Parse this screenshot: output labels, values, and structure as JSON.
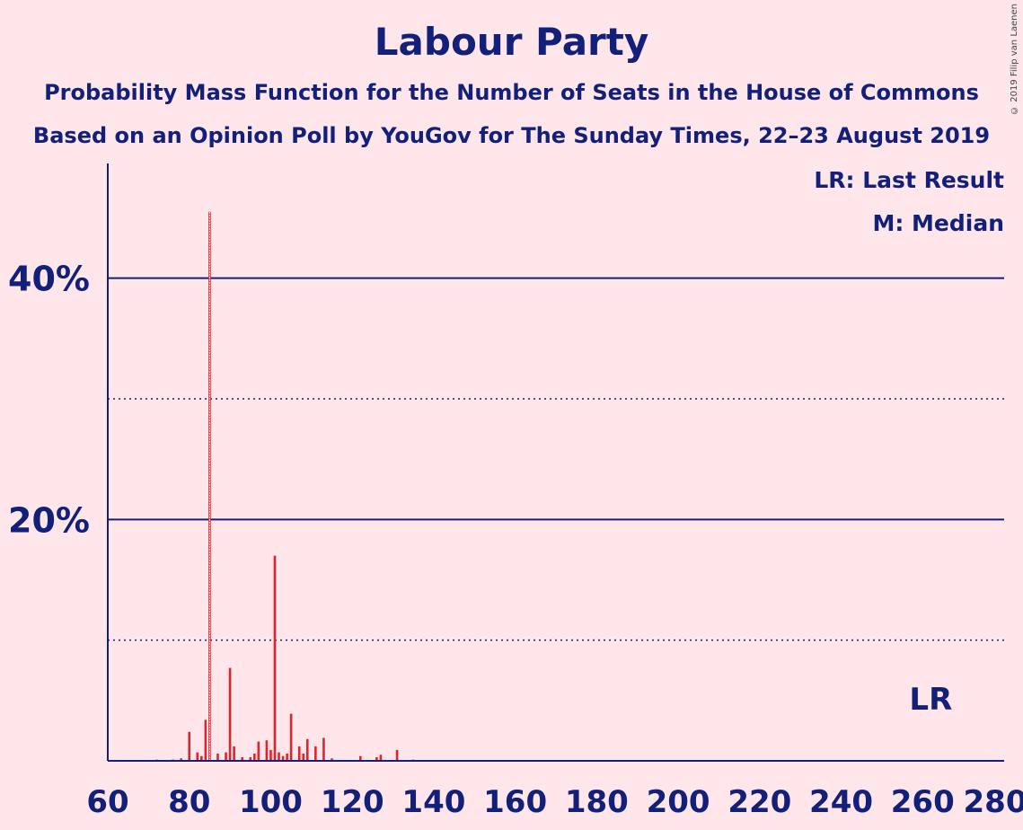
{
  "chart_data": {
    "type": "bar",
    "title": "Labour Party",
    "subtitles": [
      "Probability Mass Function for the Number of Seats in the House of Commons",
      "Based on an Opinion Poll by YouGov for The Sunday Times, 22–23 August 2019"
    ],
    "copyright": "© 2019 Filip van Laenen",
    "xlim": [
      60,
      280
    ],
    "ylim": [
      0,
      49.5
    ],
    "x_ticks": [
      60,
      80,
      100,
      120,
      140,
      160,
      180,
      200,
      220,
      240,
      260,
      280
    ],
    "y_ticks_major": [
      {
        "value": 20,
        "label": "20%"
      },
      {
        "value": 40,
        "label": "40%"
      }
    ],
    "y_ticks_minor": [
      10,
      30
    ],
    "grid": true,
    "legend": {
      "placement": "top-right",
      "entries": [
        "LR: Last Result",
        "M: Median"
      ]
    },
    "last_result": {
      "seat": 262,
      "label": "LR"
    },
    "median": {
      "seat": 85,
      "label": "M"
    },
    "colors": {
      "background": "#ffe6ea",
      "bar": "#e0242c",
      "text": "#12207a",
      "axis": "#12207a"
    },
    "bars": [
      {
        "x": 72,
        "y": 0.1
      },
      {
        "x": 76,
        "y": 0.1
      },
      {
        "x": 78,
        "y": 0.2
      },
      {
        "x": 80,
        "y": 2.4
      },
      {
        "x": 82,
        "y": 0.7
      },
      {
        "x": 83,
        "y": 0.4
      },
      {
        "x": 84,
        "y": 3.4
      },
      {
        "x": 85,
        "y": 45.5
      },
      {
        "x": 87,
        "y": 0.6
      },
      {
        "x": 89,
        "y": 0.7
      },
      {
        "x": 90,
        "y": 7.7
      },
      {
        "x": 91,
        "y": 1.2
      },
      {
        "x": 93,
        "y": 0.3
      },
      {
        "x": 95,
        "y": 0.3
      },
      {
        "x": 96,
        "y": 0.6
      },
      {
        "x": 97,
        "y": 1.6
      },
      {
        "x": 99,
        "y": 1.7
      },
      {
        "x": 100,
        "y": 0.9
      },
      {
        "x": 101,
        "y": 17.0
      },
      {
        "x": 102,
        "y": 0.7
      },
      {
        "x": 103,
        "y": 0.4
      },
      {
        "x": 104,
        "y": 0.6
      },
      {
        "x": 105,
        "y": 3.9
      },
      {
        "x": 107,
        "y": 1.2
      },
      {
        "x": 108,
        "y": 0.6
      },
      {
        "x": 109,
        "y": 1.8
      },
      {
        "x": 111,
        "y": 1.2
      },
      {
        "x": 113,
        "y": 1.9
      },
      {
        "x": 115,
        "y": 0.2
      },
      {
        "x": 122,
        "y": 0.4
      },
      {
        "x": 126,
        "y": 0.3
      },
      {
        "x": 127,
        "y": 0.5
      },
      {
        "x": 131,
        "y": 0.9
      },
      {
        "x": 135,
        "y": 0.1
      }
    ]
  }
}
